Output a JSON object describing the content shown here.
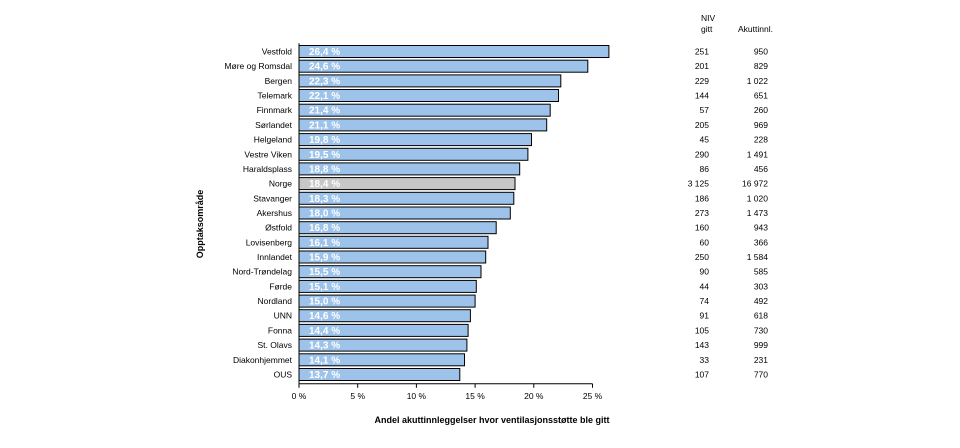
{
  "chart_data": {
    "type": "bar",
    "orientation": "horizontal",
    "ylabel": "Opptaksområde",
    "xlabel": "Andel akuttinnleggelser hvor ventilasjonsstøtte ble gitt",
    "xlim": [
      0,
      0.3
    ],
    "xticks": [
      0,
      0.05,
      0.1,
      0.15,
      0.2,
      0.25
    ],
    "xtick_labels": [
      "0 %",
      "5 %",
      "10 %",
      "15 %",
      "20 %",
      "25 %"
    ],
    "grid": false,
    "bar_color": "#9ec3ea",
    "highlight_color": "#c8c8c8",
    "highlight_category": "Norge",
    "table_headers": {
      "niv": [
        "NIV",
        "gitt"
      ],
      "akutt": "Akuttinnl."
    },
    "rows": [
      {
        "name": "Vestfold",
        "value": 0.264,
        "label": "26,4 %",
        "niv": "251",
        "akutt": "950"
      },
      {
        "name": "Møre og Romsdal",
        "value": 0.246,
        "label": "24,6 %",
        "niv": "201",
        "akutt": "829"
      },
      {
        "name": "Bergen",
        "value": 0.223,
        "label": "22,3 %",
        "niv": "229",
        "akutt": "1 022"
      },
      {
        "name": "Telemark",
        "value": 0.221,
        "label": "22,1 %",
        "niv": "144",
        "akutt": "651"
      },
      {
        "name": "Finnmark",
        "value": 0.214,
        "label": "21,4 %",
        "niv": "57",
        "akutt": "260"
      },
      {
        "name": "Sørlandet",
        "value": 0.211,
        "label": "21,1 %",
        "niv": "205",
        "akutt": "969"
      },
      {
        "name": "Helgeland",
        "value": 0.198,
        "label": "19,8 %",
        "niv": "45",
        "akutt": "228"
      },
      {
        "name": "Vestre Viken",
        "value": 0.195,
        "label": "19,5 %",
        "niv": "290",
        "akutt": "1 491"
      },
      {
        "name": "Haraldsplass",
        "value": 0.188,
        "label": "18,8 %",
        "niv": "86",
        "akutt": "456"
      },
      {
        "name": "Norge",
        "value": 0.184,
        "label": "18,4 %",
        "niv": "3 125",
        "akutt": "16 972"
      },
      {
        "name": "Stavanger",
        "value": 0.183,
        "label": "18,3 %",
        "niv": "186",
        "akutt": "1 020"
      },
      {
        "name": "Akershus",
        "value": 0.18,
        "label": "18,0 %",
        "niv": "273",
        "akutt": "1 473"
      },
      {
        "name": "Østfold",
        "value": 0.168,
        "label": "16,8 %",
        "niv": "160",
        "akutt": "943"
      },
      {
        "name": "Lovisenberg",
        "value": 0.161,
        "label": "16,1 %",
        "niv": "60",
        "akutt": "366"
      },
      {
        "name": "Innlandet",
        "value": 0.159,
        "label": "15,9 %",
        "niv": "250",
        "akutt": "1 584"
      },
      {
        "name": "Nord-Trøndelag",
        "value": 0.155,
        "label": "15,5 %",
        "niv": "90",
        "akutt": "585"
      },
      {
        "name": "Førde",
        "value": 0.151,
        "label": "15,1 %",
        "niv": "44",
        "akutt": "303"
      },
      {
        "name": "Nordland",
        "value": 0.15,
        "label": "15,0 %",
        "niv": "74",
        "akutt": "492"
      },
      {
        "name": "UNN",
        "value": 0.146,
        "label": "14,6 %",
        "niv": "91",
        "akutt": "618"
      },
      {
        "name": "Fonna",
        "value": 0.144,
        "label": "14,4 %",
        "niv": "105",
        "akutt": "730"
      },
      {
        "name": "St. Olavs",
        "value": 0.143,
        "label": "14,3 %",
        "niv": "143",
        "akutt": "999"
      },
      {
        "name": "Diakonhjemmet",
        "value": 0.141,
        "label": "14,1 %",
        "niv": "33",
        "akutt": "231"
      },
      {
        "name": "OUS",
        "value": 0.137,
        "label": "13,7 %",
        "niv": "107",
        "akutt": "770"
      }
    ]
  }
}
